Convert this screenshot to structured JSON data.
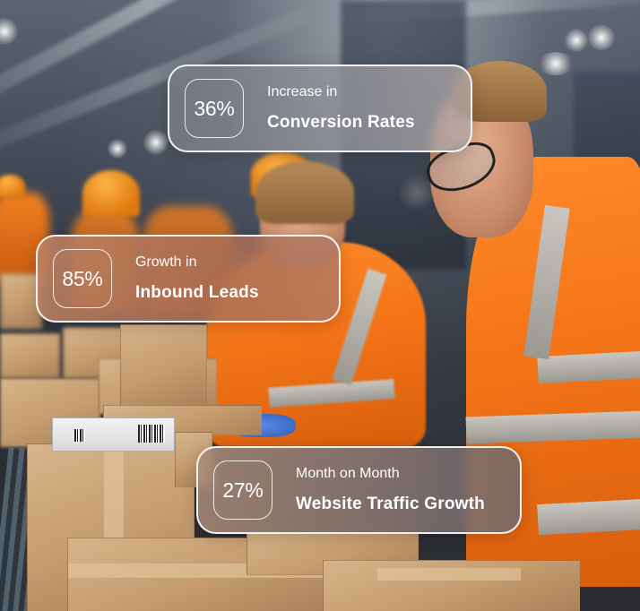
{
  "stats": [
    {
      "value": "36%",
      "line1": "Increase in",
      "line2": "Conversion Rates"
    },
    {
      "value": "85%",
      "line1": "Growth in",
      "line2": "Inbound Leads"
    },
    {
      "value": "27%",
      "line1": "Month on Month",
      "line2": "Website Traffic Growth"
    }
  ],
  "colors": {
    "card_border": "#ffffff",
    "safety_vest_orange": "#f47418",
    "cardboard": "#c49c70"
  }
}
